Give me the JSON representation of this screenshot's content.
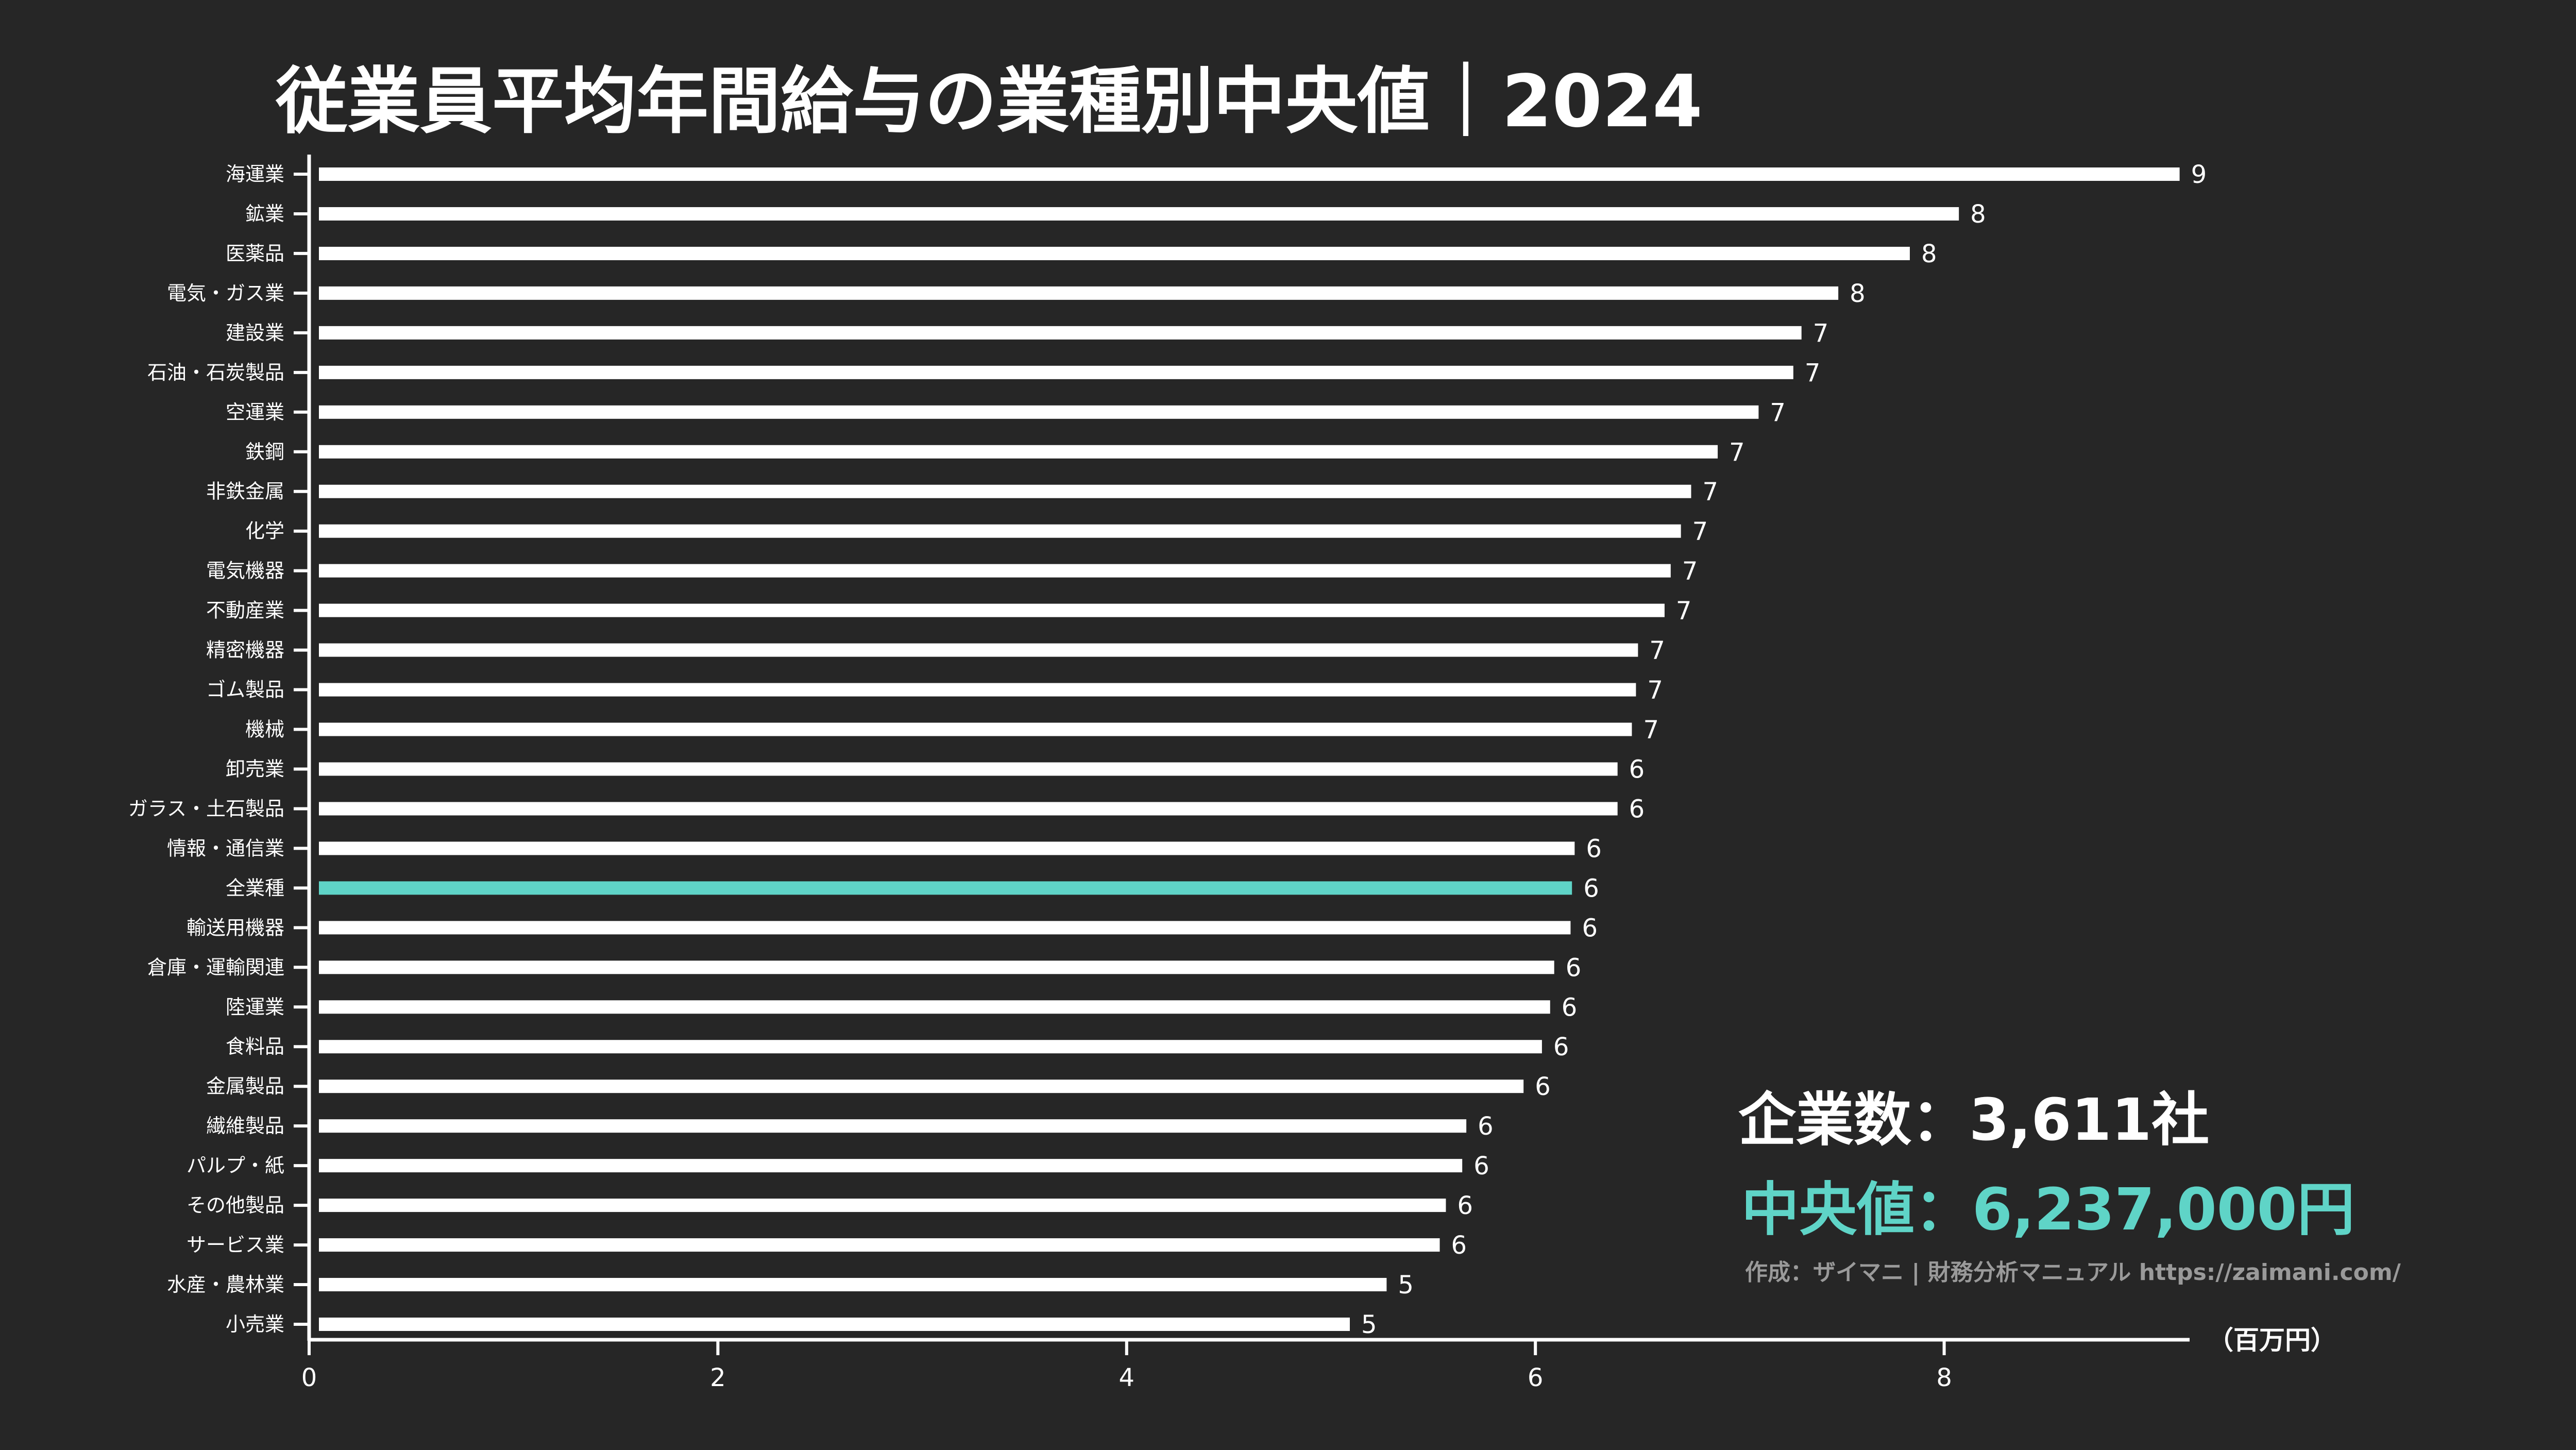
{
  "colors": {
    "background": "#262626",
    "bar": "#ffffff",
    "highlight": "#5fd4c7",
    "credit": "#9a9a9a"
  },
  "chart_data": {
    "type": "bar",
    "orientation": "horizontal",
    "title": "従業員平均年間給与の業種別中央値｜2024",
    "xlabel": "（百万円）",
    "ylabel": "",
    "xlim": [
      0,
      9.2
    ],
    "xticks": [
      0,
      2,
      4,
      6,
      8
    ],
    "grid": false,
    "highlight_category": "全業種",
    "categories": [
      "海運業",
      "鉱業",
      "医薬品",
      "電気・ガス業",
      "建設業",
      "石油・石炭製品",
      "空運業",
      "鉄鋼",
      "非鉄金属",
      "化学",
      "電気機器",
      "不動産業",
      "精密機器",
      "ゴム製品",
      "機械",
      "卸売業",
      "ガラス・土石製品",
      "情報・通信業",
      "全業種",
      "輸送用機器",
      "倉庫・運輸関連",
      "陸運業",
      "食料品",
      "金属製品",
      "繊維製品",
      "パルプ・紙",
      "その他製品",
      "サービス業",
      "水産・農林業",
      "小売業"
    ],
    "values": [
      9.21,
      8.13,
      7.89,
      7.54,
      7.36,
      7.32,
      7.15,
      6.95,
      6.82,
      6.77,
      6.72,
      6.69,
      6.56,
      6.55,
      6.53,
      6.46,
      6.46,
      6.25,
      6.237,
      6.23,
      6.15,
      6.13,
      6.09,
      6.0,
      5.72,
      5.7,
      5.62,
      5.59,
      5.33,
      5.15
    ],
    "data_labels": [
      "9",
      "8",
      "8",
      "8",
      "7",
      "7",
      "7",
      "7",
      "7",
      "7",
      "7",
      "7",
      "7",
      "7",
      "7",
      "6",
      "6",
      "6",
      "6",
      "6",
      "6",
      "6",
      "6",
      "6",
      "6",
      "6",
      "6",
      "6",
      "5",
      "5"
    ]
  },
  "annotations": {
    "company_count": "企業数：3,611社",
    "median": "中央値：6,237,000円",
    "credit": "作成：ザイマニ | 財務分析マニュアル https://zaimani.com/"
  }
}
